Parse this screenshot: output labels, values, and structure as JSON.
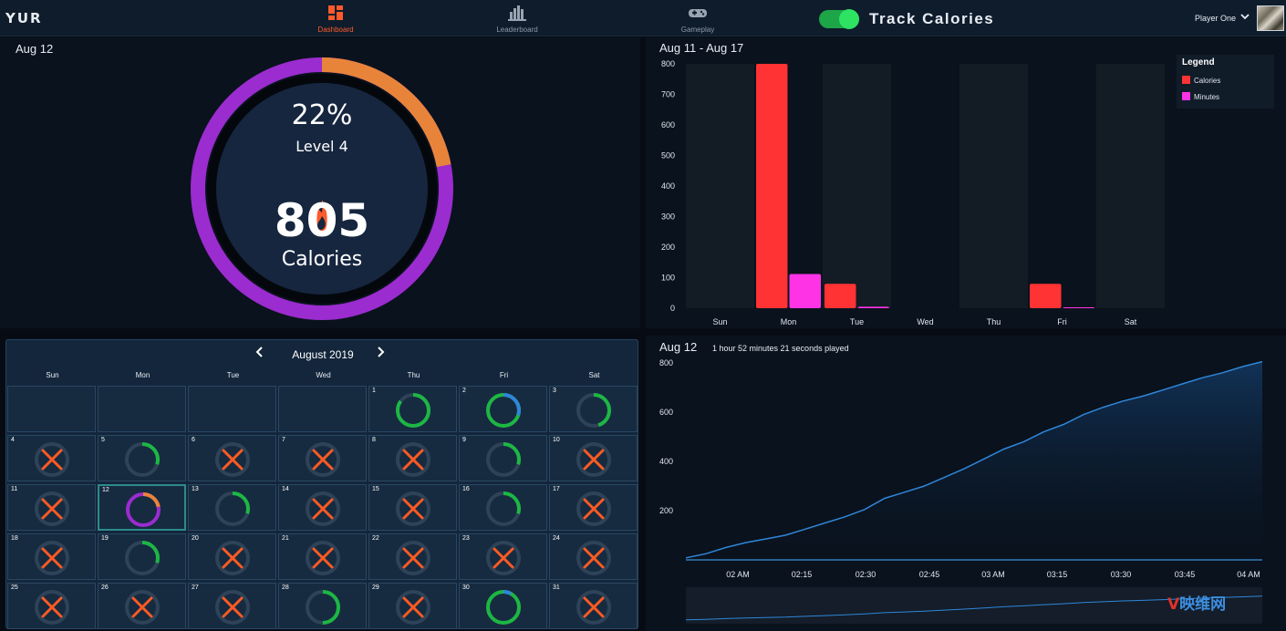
{
  "nav": {
    "logo": "YUR",
    "items": [
      {
        "label": "Dashboard",
        "icon": "dashboard-icon",
        "active": true
      },
      {
        "label": "Leaderboard",
        "icon": "leaderboard-icon",
        "active": false
      },
      {
        "label": "Gameplay",
        "icon": "gamepad-icon",
        "active": false
      }
    ],
    "toggle_on": true,
    "track_title": "Track Calories",
    "player_name": "Player One"
  },
  "ring": {
    "date": "Aug 12",
    "percent_text": "22%",
    "progress": 0.22,
    "level": "Level 4",
    "calories": "805",
    "calories_label": "Calories",
    "colors": {
      "progress": "#e8843a",
      "remaining": "#9b2ccf",
      "center": "#16263f"
    }
  },
  "calendar": {
    "month": "August 2019",
    "weekdays": [
      "Sun",
      "Mon",
      "Tue",
      "Wed",
      "Thu",
      "Fri",
      "Sat"
    ],
    "first_weekday": 4,
    "selected_day": 12,
    "days": [
      {
        "day": 1,
        "status": "ring",
        "progress": 0.85,
        "color": "#1db743"
      },
      {
        "day": 2,
        "status": "ring",
        "progress": 1.0,
        "color": "#1db743",
        "extra": 0.3
      },
      {
        "day": 3,
        "status": "ring",
        "progress": 0.45,
        "color": "#1db743"
      },
      {
        "day": 4,
        "status": "none"
      },
      {
        "day": 5,
        "status": "ring",
        "progress": 0.3,
        "color": "#1db743"
      },
      {
        "day": 6,
        "status": "none"
      },
      {
        "day": 7,
        "status": "none"
      },
      {
        "day": 8,
        "status": "none"
      },
      {
        "day": 9,
        "status": "ring",
        "progress": 0.3,
        "color": "#1db743"
      },
      {
        "day": 10,
        "status": "none"
      },
      {
        "day": 11,
        "status": "none"
      },
      {
        "day": 12,
        "status": "level",
        "progress": 0.22
      },
      {
        "day": 13,
        "status": "ring",
        "progress": 0.3,
        "color": "#1db743"
      },
      {
        "day": 14,
        "status": "none"
      },
      {
        "day": 15,
        "status": "none"
      },
      {
        "day": 16,
        "status": "ring",
        "progress": 0.3,
        "color": "#1db743"
      },
      {
        "day": 17,
        "status": "none"
      },
      {
        "day": 18,
        "status": "none"
      },
      {
        "day": 19,
        "status": "ring",
        "progress": 0.3,
        "color": "#1db743"
      },
      {
        "day": 20,
        "status": "none"
      },
      {
        "day": 21,
        "status": "none"
      },
      {
        "day": 22,
        "status": "none"
      },
      {
        "day": 23,
        "status": "none"
      },
      {
        "day": 24,
        "status": "none"
      },
      {
        "day": 25,
        "status": "none"
      },
      {
        "day": 26,
        "status": "none"
      },
      {
        "day": 27,
        "status": "none"
      },
      {
        "day": 28,
        "status": "ring",
        "progress": 0.5,
        "color": "#1db743"
      },
      {
        "day": 29,
        "status": "none"
      },
      {
        "day": 30,
        "status": "ring",
        "progress": 1.0,
        "color": "#1db743",
        "extra": 0.08
      },
      {
        "day": 31,
        "status": "none"
      }
    ]
  },
  "bar_chart": {
    "date_range": "Aug 11 - Aug 17",
    "legend_title": "Legend",
    "chart_data": {
      "type": "bar",
      "categories": [
        "Sun",
        "Mon",
        "Tue",
        "Wed",
        "Thu",
        "Fri",
        "Sat"
      ],
      "series": [
        {
          "name": "Calories",
          "color": "#ff3333",
          "values": [
            0,
            805,
            80,
            0,
            0,
            80,
            0
          ]
        },
        {
          "name": "Minutes",
          "color": "#ff33e6",
          "values": [
            0,
            112,
            5,
            0,
            0,
            3,
            0
          ]
        }
      ],
      "ylim": [
        0,
        800
      ],
      "yticks": [
        0,
        100,
        200,
        300,
        400,
        500,
        600,
        700,
        800
      ],
      "grid": false,
      "legend_position": "top-right"
    }
  },
  "line_chart": {
    "date": "Aug 12",
    "subtitle": "1 hour 52 minutes 21 seconds played",
    "chart_data": {
      "type": "area",
      "x": [
        "01:47",
        "01:50",
        "01:55",
        "02:00",
        "02:05",
        "02:10",
        "02:15",
        "02:20",
        "02:25",
        "02:30",
        "02:35",
        "02:40",
        "02:45",
        "02:50",
        "02:55",
        "03:00",
        "03:05",
        "03:10",
        "03:15",
        "03:20",
        "03:25",
        "03:30",
        "03:35",
        "03:40",
        "03:45",
        "03:50",
        "03:55",
        "04:00",
        "04:05",
        "04:08"
      ],
      "values": [
        8,
        25,
        50,
        70,
        85,
        100,
        125,
        150,
        175,
        205,
        250,
        275,
        300,
        335,
        370,
        410,
        450,
        480,
        520,
        550,
        590,
        620,
        645,
        665,
        690,
        715,
        740,
        760,
        785,
        805
      ],
      "xticks": [
        "02 AM",
        "02:15",
        "02:30",
        "02:45",
        "03 AM",
        "03:15",
        "03:30",
        "03:45",
        "04 AM"
      ],
      "yticks": [
        200,
        400,
        600,
        800
      ],
      "ylim": [
        0,
        800
      ],
      "colors": {
        "line": "#2f86d9",
        "fill": "#0f2a4a"
      }
    }
  },
  "watermark": {
    "v": "V",
    "text": "映维网"
  }
}
